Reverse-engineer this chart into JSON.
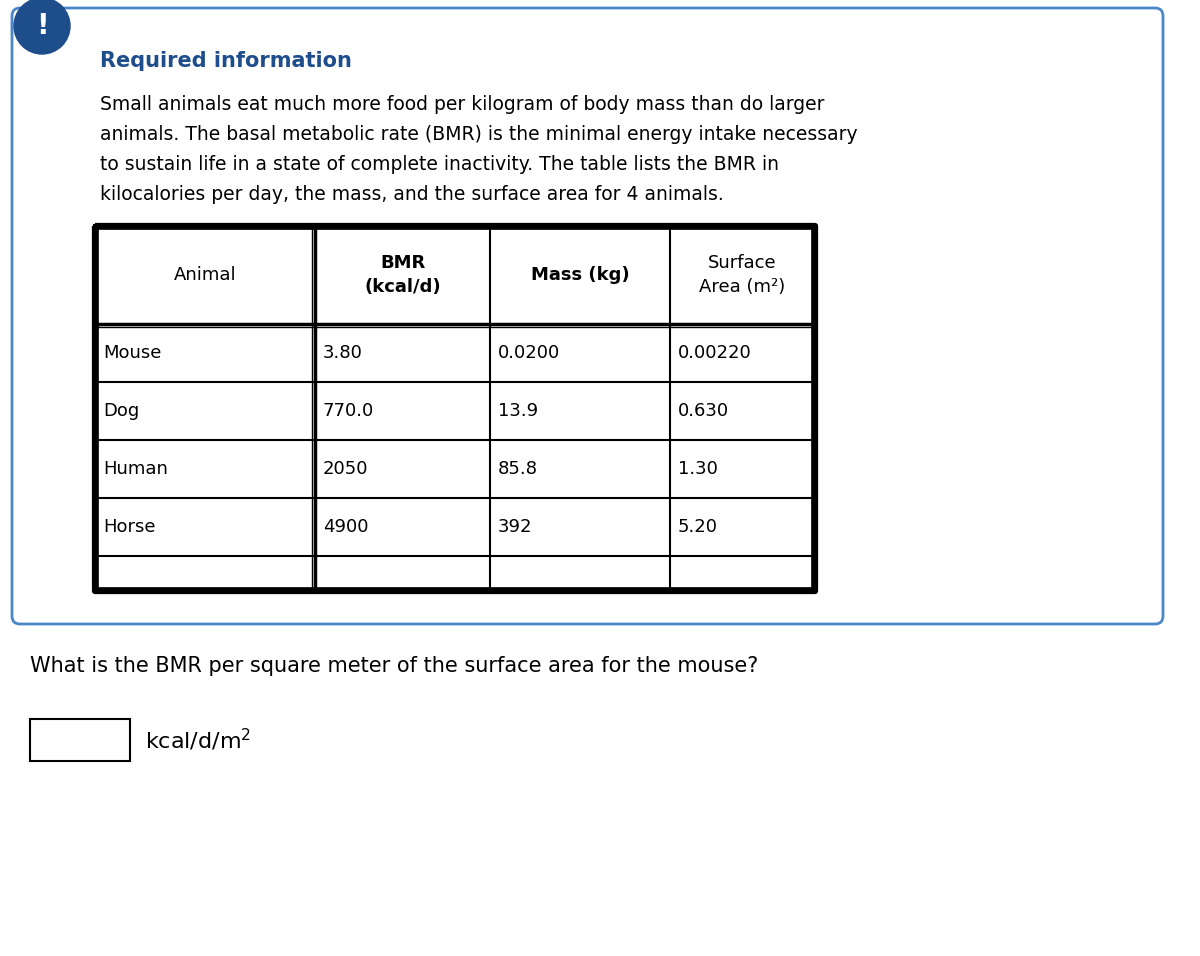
{
  "required_info_label": "Required information",
  "description_lines": [
    "Small animals eat much more food per kilogram of body mass than do larger",
    "animals. The basal metabolic rate (BMR) is the minimal energy intake necessary",
    "to sustain life in a state of complete inactivity. The table lists the BMR in",
    "kilocalories per day, the mass, and the surface area for 4 animals."
  ],
  "table_col0_header": "Animal",
  "table_col1_header": "BMR\n(kcal/d)",
  "table_col2_header": "Mass (kg)",
  "table_col3_header": "Surface\nArea (m²)",
  "table_data": [
    [
      "Mouse",
      "3.80",
      "0.0200",
      "0.00220"
    ],
    [
      "Dog",
      "770.0",
      "13.9",
      "0.630"
    ],
    [
      "Human",
      "2050",
      "85.8",
      "1.30"
    ],
    [
      "Horse",
      "4900",
      "392",
      "5.20"
    ]
  ],
  "question": "What is the BMR per square meter of the surface area for the mouse?",
  "exclamation_color": "#1e4d8c",
  "border_color": "#4a86c8",
  "required_info_color": "#1e4d8c",
  "text_color": "#000000",
  "background_color": "#ffffff"
}
